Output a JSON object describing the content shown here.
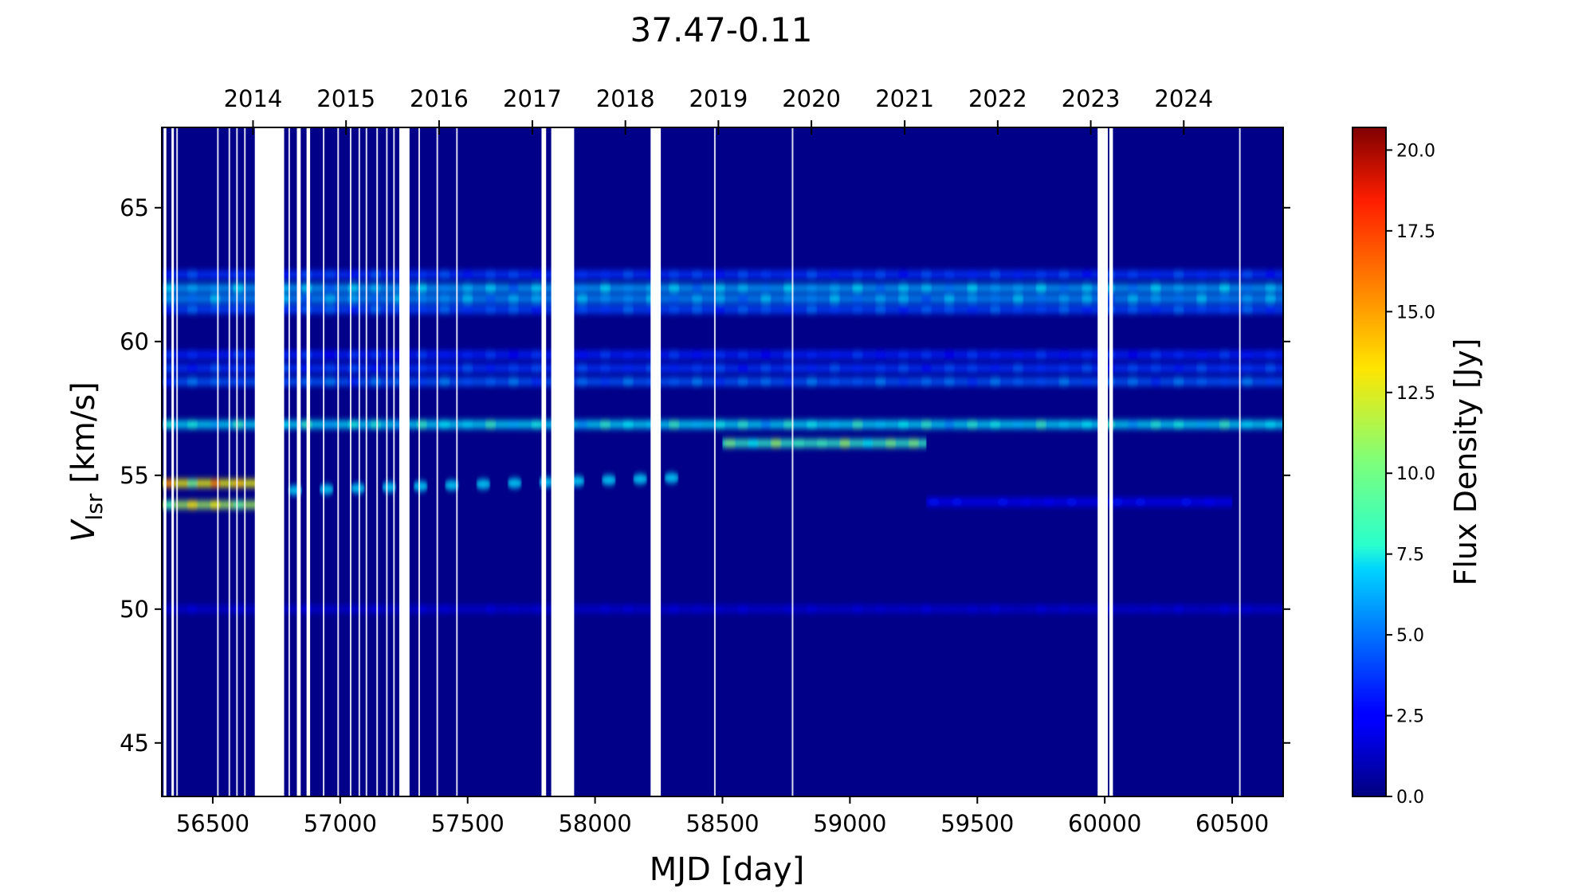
{
  "chart_data": {
    "type": "heatmap",
    "title": "37.47-0.11",
    "xlabel": "MJD [day]",
    "ylabel_main": "V",
    "ylabel_sub": "lsr",
    "ylabel_rest": " [km/s]",
    "colorbar_label": "Flux Density [Jy]",
    "colormap": "jet",
    "xlim": [
      56300,
      60700
    ],
    "ylim": [
      43.0,
      68.0
    ],
    "clim": [
      0.0,
      20.7
    ],
    "x_ticks": [
      56500,
      57000,
      57500,
      58000,
      58500,
      59000,
      59500,
      60000,
      60500
    ],
    "x_tick_labels": [
      "56500",
      "57000",
      "57500",
      "58000",
      "58500",
      "59000",
      "59500",
      "60000",
      "60500"
    ],
    "y_ticks": [
      45,
      50,
      55,
      60,
      65
    ],
    "y_tick_labels": [
      "45",
      "50",
      "55",
      "60",
      "65"
    ],
    "top_axis": {
      "label_years": [
        "2014",
        "2015",
        "2016",
        "2017",
        "2018",
        "2019",
        "2020",
        "2021",
        "2022",
        "2023",
        "2024"
      ],
      "year_start_mjd": [
        56658,
        57023,
        57388,
        57754,
        58119,
        58484,
        58849,
        59215,
        59580,
        59945,
        60310
      ]
    },
    "colorbar_ticks": [
      0.0,
      2.5,
      5.0,
      7.5,
      10.0,
      12.5,
      15.0,
      17.5,
      20.0
    ],
    "colorbar_tick_labels": [
      "0.0",
      "2.5",
      "5.0",
      "7.5",
      "10.0",
      "12.5",
      "15.0",
      "17.5",
      "20.0"
    ],
    "emission_features": [
      {
        "velocity_kms": 62.5,
        "mjd_range": [
          56300,
          60700
        ],
        "peak_jy": 4.5
      },
      {
        "velocity_kms": 62.0,
        "mjd_range": [
          56300,
          60700
        ],
        "peak_jy": 7.5
      },
      {
        "velocity_kms": 61.6,
        "mjd_range": [
          56300,
          60700
        ],
        "peak_jy": 7.0
      },
      {
        "velocity_kms": 61.2,
        "mjd_range": [
          56300,
          60700
        ],
        "peak_jy": 5.0
      },
      {
        "velocity_kms": 59.5,
        "mjd_range": [
          56300,
          60700
        ],
        "peak_jy": 4.0
      },
      {
        "velocity_kms": 59.0,
        "mjd_range": [
          56300,
          60700
        ],
        "peak_jy": 4.5
      },
      {
        "velocity_kms": 58.5,
        "mjd_range": [
          56300,
          60700
        ],
        "peak_jy": 5.5
      },
      {
        "velocity_kms": 56.9,
        "mjd_range": [
          56300,
          60700
        ],
        "peak_jy": 9.0
      },
      {
        "velocity_kms": 54.7,
        "mjd_range": [
          56300,
          56700
        ],
        "peak_jy": 16.0
      },
      {
        "velocity_kms": 53.9,
        "mjd_range": [
          56300,
          56700
        ],
        "peak_jy": 14.0
      },
      {
        "drifting": true,
        "mjd_range": [
          56700,
          58300
        ],
        "velocity_range_kms": [
          54.4,
          54.9
        ],
        "peak_jy": 7.0
      },
      {
        "velocity_kms": 56.2,
        "mjd_range": [
          58500,
          59300
        ],
        "peak_jy": 11.0
      },
      {
        "velocity_kms": 54.0,
        "mjd_range": [
          59300,
          60500
        ],
        "peak_jy": 3.0
      },
      {
        "velocity_kms": 50.0,
        "mjd_range": [
          56300,
          60700
        ],
        "peak_jy": 2.0
      }
    ],
    "data_gaps_mjd": [
      [
        56307,
        56318
      ],
      [
        56338,
        56346
      ],
      [
        56665,
        56780
      ],
      [
        56830,
        56845
      ],
      [
        56868,
        56882
      ],
      [
        57232,
        57272
      ],
      [
        57790,
        57808
      ],
      [
        57828,
        57918
      ],
      [
        58218,
        58258
      ],
      [
        59972,
        60012
      ],
      [
        60018,
        60032
      ]
    ],
    "missing_epochs_mjd": [
      56360,
      56520,
      56565,
      56595,
      56626,
      56800,
      56935,
      56992,
      57041,
      57075,
      57103,
      57145,
      57183,
      57211,
      57310,
      57381,
      57458,
      58470,
      58775,
      60530
    ],
    "grid": false,
    "legend": "none"
  }
}
